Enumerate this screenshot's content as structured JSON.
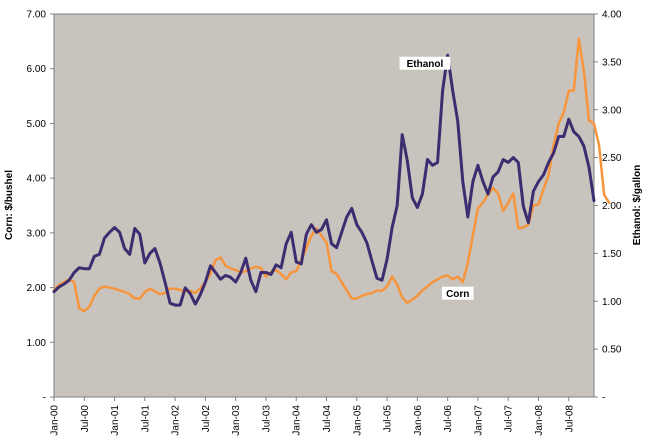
{
  "chart_data": {
    "type": "line",
    "title": "",
    "xlabel": "",
    "ylabel_left": "Corn: $/bushel",
    "ylabel_right": "Ethanol: $/gallon",
    "ylim_left": [
      0,
      7
    ],
    "ylim_right": [
      0,
      4
    ],
    "left_ticks": [
      {
        "value": 0,
        "label": "-"
      },
      {
        "value": 1,
        "label": "1.00"
      },
      {
        "value": 2,
        "label": "2.00"
      },
      {
        "value": 3,
        "label": "3.00"
      },
      {
        "value": 4,
        "label": "4.00"
      },
      {
        "value": 5,
        "label": "5.00"
      },
      {
        "value": 6,
        "label": "6.00"
      },
      {
        "value": 7,
        "label": "7.00"
      }
    ],
    "right_ticks": [
      {
        "value": 0,
        "label": "-"
      },
      {
        "value": 0.5,
        "label": "0.50"
      },
      {
        "value": 1,
        "label": "1.00"
      },
      {
        "value": 1.5,
        "label": "1.50"
      },
      {
        "value": 2,
        "label": "2.00"
      },
      {
        "value": 2.5,
        "label": "2.50"
      },
      {
        "value": 3,
        "label": "3.00"
      },
      {
        "value": 3.5,
        "label": "3.50"
      },
      {
        "value": 4,
        "label": "4.00"
      }
    ],
    "x_ticks": [
      {
        "month": 0,
        "label": "Jan-00"
      },
      {
        "month": 6,
        "label": "Jul-00"
      },
      {
        "month": 12,
        "label": "Jan-01"
      },
      {
        "month": 18,
        "label": "Jul-01"
      },
      {
        "month": 24,
        "label": "Jan-02"
      },
      {
        "month": 30,
        "label": "Jul-02"
      },
      {
        "month": 36,
        "label": "Jan-03"
      },
      {
        "month": 42,
        "label": "Jul-03"
      },
      {
        "month": 48,
        "label": "Jan-04"
      },
      {
        "month": 54,
        "label": "Jul-04"
      },
      {
        "month": 60,
        "label": "Jan-05"
      },
      {
        "month": 66,
        "label": "Jul-05"
      },
      {
        "month": 72,
        "label": "Jan-06"
      },
      {
        "month": 78,
        "label": "Jul-06"
      },
      {
        "month": 84,
        "label": "Jan-07"
      },
      {
        "month": 90,
        "label": "Jul-07"
      },
      {
        "month": 96,
        "label": "Jan-08"
      },
      {
        "month": 102,
        "label": "Jul-08"
      }
    ],
    "x_range_months": [
      0,
      107
    ],
    "series": [
      {
        "name": "Corn",
        "label": "Corn",
        "axis": "left",
        "color": "#F7953D",
        "start_month": 0,
        "values": [
          1.95,
          2.05,
          2.1,
          2.15,
          2.1,
          1.62,
          1.57,
          1.65,
          1.85,
          1.98,
          2.02,
          2.0,
          1.98,
          1.95,
          1.92,
          1.88,
          1.8,
          1.8,
          1.92,
          1.98,
          1.93,
          1.88,
          1.9,
          1.98,
          1.98,
          1.96,
          1.93,
          1.94,
          1.9,
          1.99,
          2.1,
          2.25,
          2.5,
          2.55,
          2.4,
          2.35,
          2.32,
          2.28,
          2.3,
          2.35,
          2.38,
          2.36,
          2.2,
          2.28,
          2.32,
          2.25,
          2.15,
          2.28,
          2.3,
          2.5,
          2.72,
          2.95,
          3.08,
          2.95,
          2.82,
          2.3,
          2.25,
          2.1,
          1.95,
          1.8,
          1.8,
          1.85,
          1.88,
          1.9,
          1.95,
          1.94,
          2.02,
          2.2,
          2.05,
          1.82,
          1.72,
          1.78,
          1.85,
          1.95,
          2.02,
          2.1,
          2.15,
          2.2,
          2.22,
          2.15,
          2.2,
          2.1,
          2.45,
          2.95,
          3.45,
          3.55,
          3.7,
          3.82,
          3.72,
          3.4,
          3.55,
          3.72,
          3.08,
          3.1,
          3.15,
          3.5,
          3.52,
          3.8,
          4.05,
          4.6,
          5.0,
          5.2,
          5.6,
          5.6,
          6.55,
          5.95,
          5.05,
          5.0,
          4.6,
          3.7,
          3.55
        ]
      },
      {
        "name": "Ethanol",
        "label": "Ethanol",
        "axis": "right",
        "color": "#3D2D70",
        "start_month": 0,
        "values": [
          1.1,
          1.15,
          1.18,
          1.22,
          1.3,
          1.35,
          1.34,
          1.34,
          1.47,
          1.49,
          1.66,
          1.72,
          1.77,
          1.72,
          1.55,
          1.49,
          1.76,
          1.7,
          1.4,
          1.5,
          1.55,
          1.4,
          1.2,
          0.98,
          0.96,
          0.96,
          1.14,
          1.08,
          0.97,
          1.07,
          1.2,
          1.37,
          1.3,
          1.23,
          1.27,
          1.25,
          1.2,
          1.3,
          1.45,
          1.22,
          1.1,
          1.3,
          1.3,
          1.28,
          1.38,
          1.35,
          1.6,
          1.72,
          1.41,
          1.39,
          1.7,
          1.8,
          1.72,
          1.75,
          1.85,
          1.6,
          1.56,
          1.72,
          1.88,
          1.97,
          1.8,
          1.72,
          1.61,
          1.42,
          1.24,
          1.22,
          1.44,
          1.77,
          2.0,
          2.74,
          2.47,
          2.08,
          1.98,
          2.12,
          2.48,
          2.42,
          2.45,
          3.2,
          3.57,
          3.2,
          2.88,
          2.25,
          1.88,
          2.25,
          2.42,
          2.25,
          2.12,
          2.3,
          2.35,
          2.48,
          2.45,
          2.5,
          2.45,
          1.99,
          1.82,
          2.15,
          2.25,
          2.32,
          2.45,
          2.55,
          2.72,
          2.72,
          2.9,
          2.77,
          2.72,
          2.62,
          2.4,
          2.05
        ]
      }
    ]
  }
}
